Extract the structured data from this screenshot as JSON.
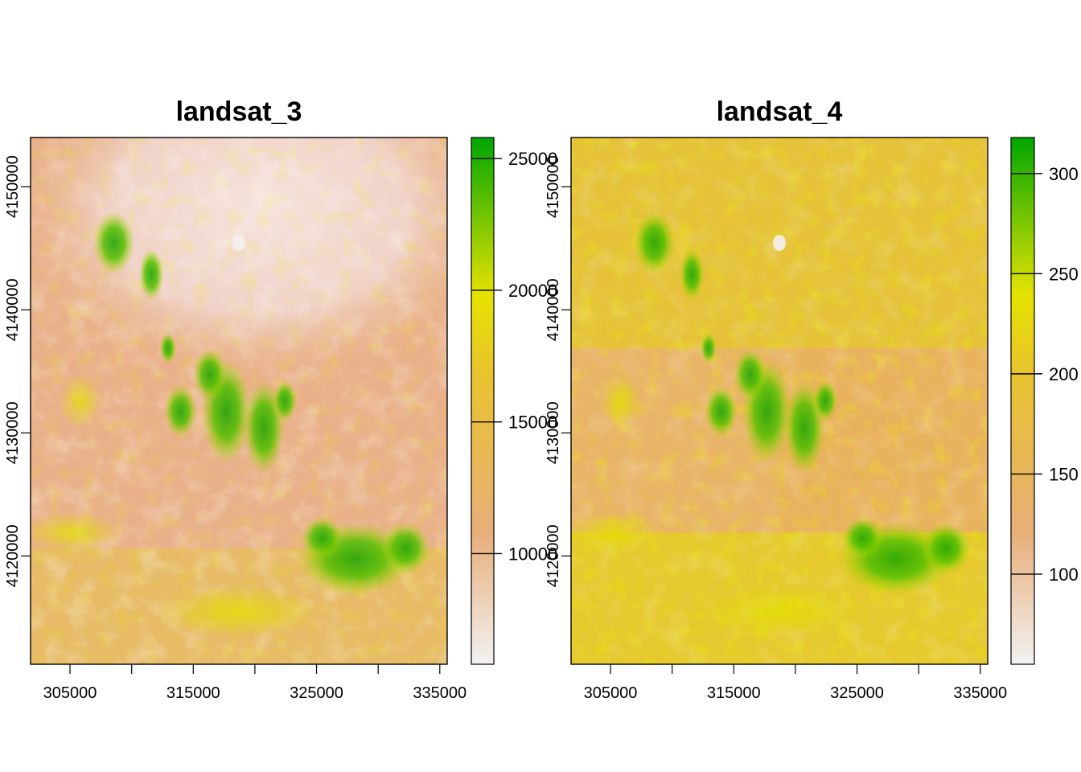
{
  "panels": [
    {
      "title": "landsat_3",
      "x_ticks": [
        "305000",
        "315000",
        "325000",
        "335000"
      ],
      "y_ticks": [
        "4120000",
        "4130000",
        "4140000",
        "4150000"
      ],
      "legend_ticks": [
        "10000",
        "15000",
        "20000",
        "25000"
      ],
      "colors": {
        "low": "#f1f1f1",
        "mid_low": "#e8ae79",
        "mid": "#e7e300",
        "high": "#00a600"
      }
    },
    {
      "title": "landsat_4",
      "x_ticks": [
        "305000",
        "315000",
        "325000",
        "335000"
      ],
      "y_ticks": [
        "4120000",
        "4130000",
        "4140000",
        "4150000"
      ],
      "legend_ticks": [
        "100",
        "150",
        "200",
        "250",
        "300"
      ],
      "colors": {
        "low": "#f1f1f1",
        "mid_low": "#e8ae79",
        "mid": "#e7e300",
        "high": "#00a600"
      }
    }
  ],
  "chart_data": [
    {
      "type": "heatmap",
      "title": "landsat_3",
      "xlabel": "",
      "ylabel": "",
      "xlim": [
        301800,
        335600
      ],
      "ylim": [
        4111200,
        4154000
      ],
      "x_ticks": [
        305000,
        310000,
        315000,
        320000,
        325000,
        330000,
        335000
      ],
      "x_tick_labels": [
        "305000",
        "315000",
        "325000",
        "335000"
      ],
      "y_ticks": [
        4120000,
        4130000,
        4140000,
        4150000
      ],
      "legend": {
        "range": [
          5800,
          25800
        ],
        "ticks": [
          10000,
          15000,
          20000,
          25000
        ],
        "placement": "right"
      }
    },
    {
      "type": "heatmap",
      "title": "landsat_4",
      "xlabel": "",
      "ylabel": "",
      "xlim": [
        301800,
        335600
      ],
      "ylim": [
        4111200,
        4154000
      ],
      "x_ticks": [
        305000,
        310000,
        315000,
        320000,
        325000,
        330000,
        335000
      ],
      "x_tick_labels": [
        "305000",
        "315000",
        "325000",
        "335000"
      ],
      "y_ticks": [
        4120000,
        4130000,
        4140000,
        4150000
      ],
      "legend": {
        "range": [
          55,
          318
        ],
        "ticks": [
          100,
          150,
          200,
          250,
          300
        ],
        "placement": "right"
      }
    }
  ]
}
